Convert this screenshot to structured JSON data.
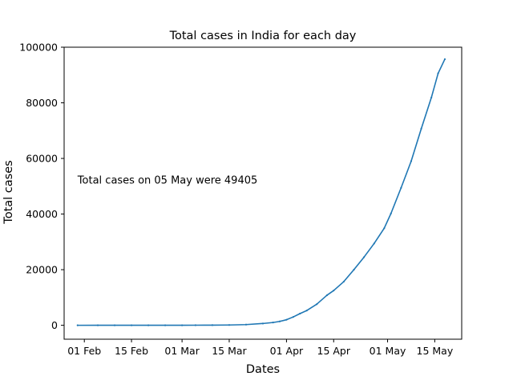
{
  "chart_data": {
    "type": "line",
    "title": "Total cases in India for each day",
    "xlabel": "Dates",
    "ylabel": "Total cases",
    "annotation": "Total cases on 05 May were 49405",
    "annotation_anchor": {
      "date": "2020-01-30",
      "value": 51000
    },
    "xlim": [
      "2020-01-26",
      "2020-05-23"
    ],
    "ylim": [
      -5000,
      100000
    ],
    "x_ticks": [
      {
        "date": "2020-02-01",
        "label": "01 Feb"
      },
      {
        "date": "2020-02-15",
        "label": "15 Feb"
      },
      {
        "date": "2020-03-01",
        "label": "01 Mar"
      },
      {
        "date": "2020-03-15",
        "label": "15 Mar"
      },
      {
        "date": "2020-04-01",
        "label": "01 Apr"
      },
      {
        "date": "2020-04-15",
        "label": "15 Apr"
      },
      {
        "date": "2020-05-01",
        "label": "01 May"
      },
      {
        "date": "2020-05-15",
        "label": "15 May"
      }
    ],
    "y_ticks": [
      0,
      20000,
      40000,
      60000,
      80000,
      100000
    ],
    "grid": false,
    "line_color": "#1f77b4",
    "series": [
      {
        "x": [
          "2020-01-30",
          "2020-02-05",
          "2020-02-10",
          "2020-02-15",
          "2020-02-20",
          "2020-02-25",
          "2020-03-01",
          "2020-03-05",
          "2020-03-10",
          "2020-03-15",
          "2020-03-20",
          "2020-03-25",
          "2020-03-28",
          "2020-03-30",
          "2020-04-01",
          "2020-04-03",
          "2020-04-05",
          "2020-04-07",
          "2020-04-10",
          "2020-04-13",
          "2020-04-15",
          "2020-04-18",
          "2020-04-21",
          "2020-04-24",
          "2020-04-27",
          "2020-04-30",
          "2020-05-02",
          "2020-05-05",
          "2020-05-08",
          "2020-05-11",
          "2020-05-14",
          "2020-05-16",
          "2020-05-18"
        ],
        "y": [
          1,
          3,
          3,
          3,
          3,
          3,
          3,
          30,
          60,
          110,
          250,
          650,
          1000,
          1400,
          2000,
          3000,
          4200,
          5300,
          7600,
          10800,
          12500,
          15700,
          20000,
          24500,
          29400,
          34900,
          40200,
          49405,
          59000,
          70700,
          81900,
          90600,
          95700
        ]
      }
    ]
  }
}
